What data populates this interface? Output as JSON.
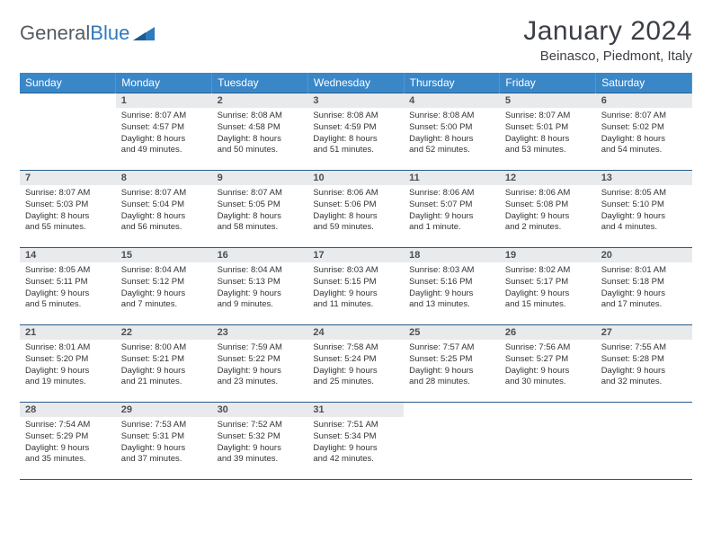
{
  "logo": {
    "text1": "General",
    "text2": "Blue"
  },
  "title": "January 2024",
  "location": "Beinasco, Piedmont, Italy",
  "colors": {
    "header_bg": "#3a87c8",
    "header_text": "#ffffff",
    "daynum_bg": "#e9eaec",
    "border": "#2a5a8a",
    "logo_gray": "#555b61",
    "logo_blue": "#2f79bd"
  },
  "weekdays": [
    "Sunday",
    "Monday",
    "Tuesday",
    "Wednesday",
    "Thursday",
    "Friday",
    "Saturday"
  ],
  "weeks": [
    [
      null,
      {
        "n": "1",
        "sr": "Sunrise: 8:07 AM",
        "ss": "Sunset: 4:57 PM",
        "d1": "Daylight: 8 hours",
        "d2": "and 49 minutes."
      },
      {
        "n": "2",
        "sr": "Sunrise: 8:08 AM",
        "ss": "Sunset: 4:58 PM",
        "d1": "Daylight: 8 hours",
        "d2": "and 50 minutes."
      },
      {
        "n": "3",
        "sr": "Sunrise: 8:08 AM",
        "ss": "Sunset: 4:59 PM",
        "d1": "Daylight: 8 hours",
        "d2": "and 51 minutes."
      },
      {
        "n": "4",
        "sr": "Sunrise: 8:08 AM",
        "ss": "Sunset: 5:00 PM",
        "d1": "Daylight: 8 hours",
        "d2": "and 52 minutes."
      },
      {
        "n": "5",
        "sr": "Sunrise: 8:07 AM",
        "ss": "Sunset: 5:01 PM",
        "d1": "Daylight: 8 hours",
        "d2": "and 53 minutes."
      },
      {
        "n": "6",
        "sr": "Sunrise: 8:07 AM",
        "ss": "Sunset: 5:02 PM",
        "d1": "Daylight: 8 hours",
        "d2": "and 54 minutes."
      }
    ],
    [
      {
        "n": "7",
        "sr": "Sunrise: 8:07 AM",
        "ss": "Sunset: 5:03 PM",
        "d1": "Daylight: 8 hours",
        "d2": "and 55 minutes."
      },
      {
        "n": "8",
        "sr": "Sunrise: 8:07 AM",
        "ss": "Sunset: 5:04 PM",
        "d1": "Daylight: 8 hours",
        "d2": "and 56 minutes."
      },
      {
        "n": "9",
        "sr": "Sunrise: 8:07 AM",
        "ss": "Sunset: 5:05 PM",
        "d1": "Daylight: 8 hours",
        "d2": "and 58 minutes."
      },
      {
        "n": "10",
        "sr": "Sunrise: 8:06 AM",
        "ss": "Sunset: 5:06 PM",
        "d1": "Daylight: 8 hours",
        "d2": "and 59 minutes."
      },
      {
        "n": "11",
        "sr": "Sunrise: 8:06 AM",
        "ss": "Sunset: 5:07 PM",
        "d1": "Daylight: 9 hours",
        "d2": "and 1 minute."
      },
      {
        "n": "12",
        "sr": "Sunrise: 8:06 AM",
        "ss": "Sunset: 5:08 PM",
        "d1": "Daylight: 9 hours",
        "d2": "and 2 minutes."
      },
      {
        "n": "13",
        "sr": "Sunrise: 8:05 AM",
        "ss": "Sunset: 5:10 PM",
        "d1": "Daylight: 9 hours",
        "d2": "and 4 minutes."
      }
    ],
    [
      {
        "n": "14",
        "sr": "Sunrise: 8:05 AM",
        "ss": "Sunset: 5:11 PM",
        "d1": "Daylight: 9 hours",
        "d2": "and 5 minutes."
      },
      {
        "n": "15",
        "sr": "Sunrise: 8:04 AM",
        "ss": "Sunset: 5:12 PM",
        "d1": "Daylight: 9 hours",
        "d2": "and 7 minutes."
      },
      {
        "n": "16",
        "sr": "Sunrise: 8:04 AM",
        "ss": "Sunset: 5:13 PM",
        "d1": "Daylight: 9 hours",
        "d2": "and 9 minutes."
      },
      {
        "n": "17",
        "sr": "Sunrise: 8:03 AM",
        "ss": "Sunset: 5:15 PM",
        "d1": "Daylight: 9 hours",
        "d2": "and 11 minutes."
      },
      {
        "n": "18",
        "sr": "Sunrise: 8:03 AM",
        "ss": "Sunset: 5:16 PM",
        "d1": "Daylight: 9 hours",
        "d2": "and 13 minutes."
      },
      {
        "n": "19",
        "sr": "Sunrise: 8:02 AM",
        "ss": "Sunset: 5:17 PM",
        "d1": "Daylight: 9 hours",
        "d2": "and 15 minutes."
      },
      {
        "n": "20",
        "sr": "Sunrise: 8:01 AM",
        "ss": "Sunset: 5:18 PM",
        "d1": "Daylight: 9 hours",
        "d2": "and 17 minutes."
      }
    ],
    [
      {
        "n": "21",
        "sr": "Sunrise: 8:01 AM",
        "ss": "Sunset: 5:20 PM",
        "d1": "Daylight: 9 hours",
        "d2": "and 19 minutes."
      },
      {
        "n": "22",
        "sr": "Sunrise: 8:00 AM",
        "ss": "Sunset: 5:21 PM",
        "d1": "Daylight: 9 hours",
        "d2": "and 21 minutes."
      },
      {
        "n": "23",
        "sr": "Sunrise: 7:59 AM",
        "ss": "Sunset: 5:22 PM",
        "d1": "Daylight: 9 hours",
        "d2": "and 23 minutes."
      },
      {
        "n": "24",
        "sr": "Sunrise: 7:58 AM",
        "ss": "Sunset: 5:24 PM",
        "d1": "Daylight: 9 hours",
        "d2": "and 25 minutes."
      },
      {
        "n": "25",
        "sr": "Sunrise: 7:57 AM",
        "ss": "Sunset: 5:25 PM",
        "d1": "Daylight: 9 hours",
        "d2": "and 28 minutes."
      },
      {
        "n": "26",
        "sr": "Sunrise: 7:56 AM",
        "ss": "Sunset: 5:27 PM",
        "d1": "Daylight: 9 hours",
        "d2": "and 30 minutes."
      },
      {
        "n": "27",
        "sr": "Sunrise: 7:55 AM",
        "ss": "Sunset: 5:28 PM",
        "d1": "Daylight: 9 hours",
        "d2": "and 32 minutes."
      }
    ],
    [
      {
        "n": "28",
        "sr": "Sunrise: 7:54 AM",
        "ss": "Sunset: 5:29 PM",
        "d1": "Daylight: 9 hours",
        "d2": "and 35 minutes."
      },
      {
        "n": "29",
        "sr": "Sunrise: 7:53 AM",
        "ss": "Sunset: 5:31 PM",
        "d1": "Daylight: 9 hours",
        "d2": "and 37 minutes."
      },
      {
        "n": "30",
        "sr": "Sunrise: 7:52 AM",
        "ss": "Sunset: 5:32 PM",
        "d1": "Daylight: 9 hours",
        "d2": "and 39 minutes."
      },
      {
        "n": "31",
        "sr": "Sunrise: 7:51 AM",
        "ss": "Sunset: 5:34 PM",
        "d1": "Daylight: 9 hours",
        "d2": "and 42 minutes."
      },
      null,
      null,
      null
    ]
  ]
}
